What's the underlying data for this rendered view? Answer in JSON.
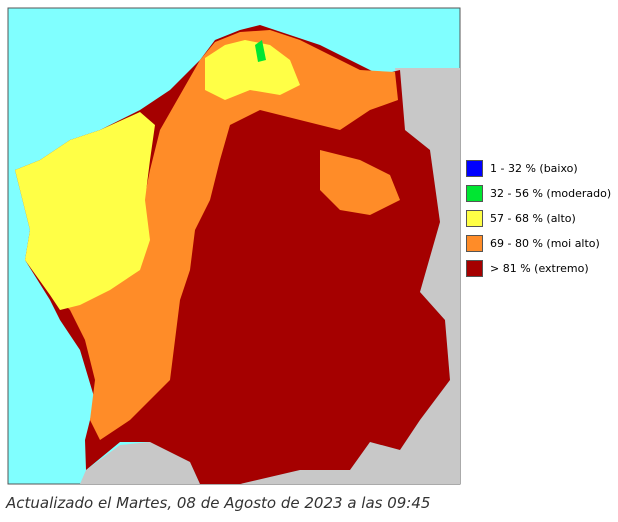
{
  "legend": {
    "items": [
      {
        "label": "1 - 32 % (baixo)",
        "color": "#0000ff"
      },
      {
        "label": "32 - 56 % (moderado)",
        "color": "#00e632"
      },
      {
        "label": "57 - 68 % (alto)",
        "color": "#ffff46"
      },
      {
        "label": "69 - 80 % (moi alto)",
        "color": "#ff8c28"
      },
      {
        "label": "> 81 % (extremo)",
        "color": "#a50000"
      }
    ]
  },
  "caption": "Actualizado el Martes, 08 de Agosto de 2023 a las 09:45"
}
